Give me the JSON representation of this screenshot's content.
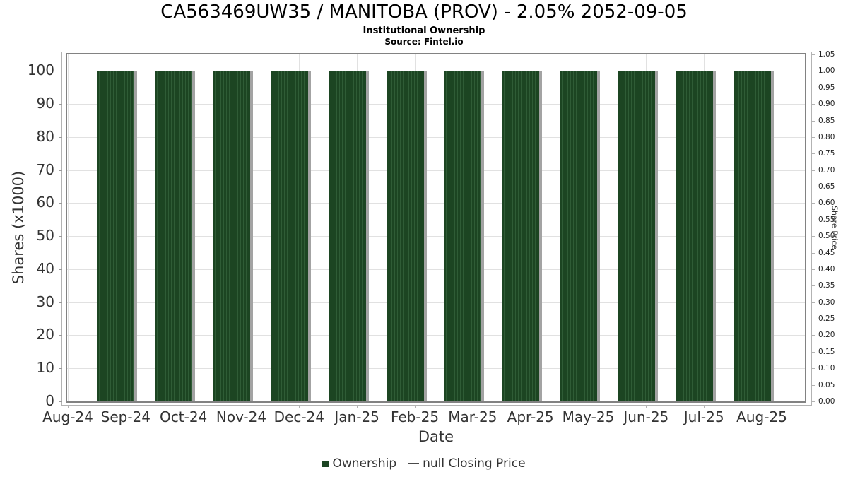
{
  "chart_data": {
    "type": "bar",
    "title": "CA563469UW35 / MANITOBA (PROV) - 2.05% 2052-09-05",
    "subtitle": "Institutional Ownership",
    "source": "Source: Fintel.io",
    "xlabel": "Date",
    "ylabel_left": "Shares (x1000)",
    "ylabel_right": "Share Price",
    "ylim_left": [
      0,
      105
    ],
    "ylim_right": [
      0,
      1.05
    ],
    "grid": true,
    "legend_position": "bottom",
    "x_ticks": [
      "Aug-24",
      "Sep-24",
      "Oct-24",
      "Nov-24",
      "Dec-24",
      "Jan-25",
      "Feb-25",
      "Mar-25",
      "Apr-25",
      "May-25",
      "Jun-25",
      "Jul-25",
      "Aug-25"
    ],
    "left_ticks": [
      0,
      10,
      20,
      30,
      40,
      50,
      60,
      70,
      80,
      90,
      100
    ],
    "right_ticks": [
      "0.00",
      "0.05",
      "0.10",
      "0.15",
      "0.20",
      "0.25",
      "0.30",
      "0.35",
      "0.40",
      "0.45",
      "0.50",
      "0.55",
      "0.60",
      "0.65",
      "0.70",
      "0.75",
      "0.80",
      "0.85",
      "0.90",
      "0.95",
      "1.00",
      "1.05"
    ],
    "categories": [
      "Sep-24",
      "Oct-24",
      "Nov-24",
      "Dec-24",
      "Jan-25",
      "Feb-25",
      "Mar-25",
      "Apr-25",
      "May-25",
      "Jun-25",
      "Jul-25",
      "Aug-25"
    ],
    "series": [
      {
        "name": "Ownership",
        "type": "bar",
        "values": [
          100,
          100,
          100,
          100,
          100,
          100,
          100,
          100,
          100,
          100,
          100,
          100
        ]
      },
      {
        "name": "null Closing Price",
        "type": "line",
        "values": [
          null,
          null,
          null,
          null,
          null,
          null,
          null,
          null,
          null,
          null,
          null,
          null
        ]
      }
    ]
  },
  "legend": {
    "items": [
      {
        "label": "Ownership",
        "marker": "square",
        "color": "#1c4522"
      },
      {
        "label": "null Closing Price",
        "marker": "line",
        "color": "#4a4a4a"
      }
    ]
  },
  "colors": {
    "bar_fill": "#1c4522",
    "bar_stripe": "#2f5c36",
    "bar_shadow": "#a3a3a3",
    "gridline": "#e1e1e1",
    "plot_border": "#828282",
    "axis_spine": "#b3b3b3",
    "tick_text": "#333333",
    "title_text": "#000000"
  }
}
